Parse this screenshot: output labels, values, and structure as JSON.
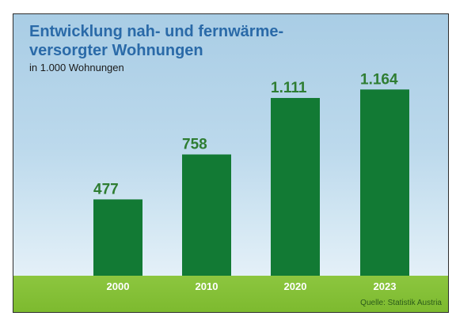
{
  "header": {
    "title_line1": "Entwicklung nah- und fernwärme-",
    "title_line2": "versorgter Wohnungen",
    "subtitle": "in 1.000 Wohnungen"
  },
  "footer": {
    "source": "Quelle: Statistik Austria"
  },
  "colors": {
    "bar": "#127a34",
    "value_label": "#2e7d32",
    "title": "#2a6aa8",
    "grass": "#8cc63f"
  },
  "chart_data": {
    "type": "bar",
    "title": "Entwicklung nah- und fernwärme-versorgter Wohnungen",
    "ylabel": "in 1.000 Wohnungen",
    "xlabel": "",
    "categories": [
      "2000",
      "2010",
      "2020",
      "2023"
    ],
    "values": [
      477,
      758,
      1111,
      1164
    ],
    "value_labels": [
      "477",
      "758",
      "1.111",
      "1.164"
    ],
    "ylim": [
      0,
      1300
    ],
    "grid": false,
    "legend": "none"
  }
}
